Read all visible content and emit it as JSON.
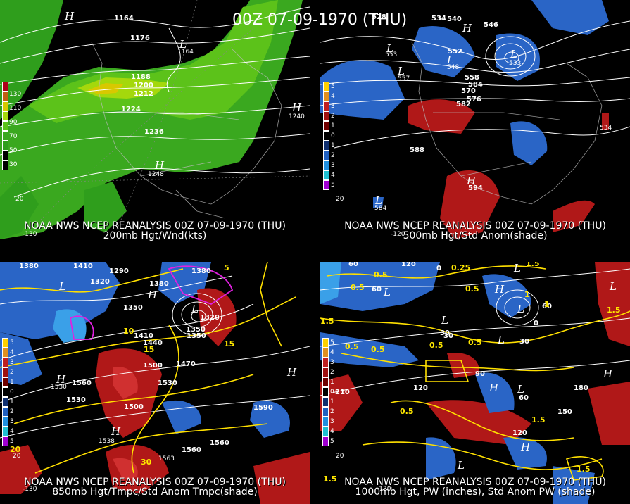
{
  "main_title": "00Z 07-09-1970 (THU)",
  "panels": [
    {
      "id": "tl",
      "caption_line1": "NOAA NWS NCEP REANALYSIS 00Z 07-09-1970 (THU)",
      "caption_line2": "200mb Hgt/Wnd(kts)",
      "legend": [
        "130",
        "110",
        "90",
        "70",
        "50",
        "30"
      ],
      "legend_colors": [
        "#b0001a",
        "#c06010",
        "#d8c800",
        "#90d000",
        "#40b020",
        "#108010"
      ],
      "contour_labels": [
        "1164",
        "1176",
        "1188",
        "1200",
        "1212",
        "1224",
        "1236",
        "1248",
        "1164"
      ],
      "pressure_marks": [
        "H",
        "H",
        "L"
      ],
      "pressure_values": [
        "1240",
        "1248"
      ],
      "lat_labels": [
        "20",
        "-130",
        "-120"
      ]
    },
    {
      "id": "tr",
      "caption_line1": "NOAA NWS NCEP REANALYSIS 00Z 07-09-1970 (THU)",
      "caption_line2": "500mb Hgt/Std Anom(shade)",
      "legend": [
        "5",
        "4",
        "3",
        "2",
        "1",
        "0",
        "1",
        "2",
        "3",
        "4",
        "5"
      ],
      "legend_colors": [
        "#ffd000",
        "#e09020",
        "#c02020",
        "#a01010",
        "#700000",
        "#000000",
        "#103070",
        "#2060c0",
        "#2090e0",
        "#20c0d0",
        "#a000d0"
      ],
      "contour_labels": [
        "528",
        "534",
        "540",
        "546",
        "552",
        "558",
        "570",
        "576",
        "582",
        "584",
        "588",
        "594",
        "534",
        "553",
        "557",
        "548",
        "533",
        "584"
      ],
      "pressure_marks": [
        "H",
        "L",
        "L",
        "L",
        "L",
        "H",
        "L"
      ],
      "lat_labels": [
        "20",
        "-130",
        "-120"
      ]
    },
    {
      "id": "bl",
      "caption_line1": "NOAA NWS NCEP REANALYSIS 00Z 07-09-1970 (THU)",
      "caption_line2": "850mb Hgt/Tmpc/Std Anom Tmpc(shade)",
      "legend": [
        "5",
        "4",
        "3",
        "2",
        "1",
        "0",
        "1",
        "2",
        "3",
        "4",
        "5"
      ],
      "legend_colors": [
        "#ffd000",
        "#e09020",
        "#c02020",
        "#a01010",
        "#700000",
        "#000000",
        "#103070",
        "#2060c0",
        "#2090e0",
        "#20c0d0",
        "#a000d0"
      ],
      "contour_labels": [
        "1380",
        "1410",
        "1290",
        "1320",
        "1380",
        "1350",
        "1350",
        "1410",
        "1440",
        "1470",
        "1500",
        "1530",
        "1560",
        "1530",
        "1500",
        "1590",
        "1560",
        "1560",
        "1350",
        "1320",
        "1380",
        "1530",
        "1538",
        "1563"
      ],
      "temp_labels": [
        "10",
        "15",
        "20",
        "15",
        "30",
        "5"
      ],
      "pressure_marks": [
        "L",
        "H",
        "L",
        "H",
        "H",
        "H"
      ],
      "lat_labels": [
        "20",
        "-130",
        "-120"
      ]
    },
    {
      "id": "br",
      "caption_line1": "NOAA NWS NCEP REANALYSIS 00Z 07-09-1970 (THU)",
      "caption_line2": "1000mb Hgt, PW (inches), Std Anom PW (shade)",
      "legend": [
        "5",
        "4",
        "3",
        "2",
        "1",
        "0",
        "1",
        "2",
        "3",
        "4",
        "5"
      ],
      "legend_colors": [
        "#ffd000",
        "#e09020",
        "#c02020",
        "#a01010",
        "#700000",
        "#000000",
        "#103070",
        "#2060c0",
        "#2090e0",
        "#20c0d0",
        "#a000d0"
      ],
      "contour_labels": [
        "60",
        "120",
        "0",
        "60",
        "30",
        "90",
        "120",
        "150",
        "180",
        "210",
        "120",
        "60",
        "30",
        "0",
        "60",
        "30"
      ],
      "pw_labels": [
        "0.5",
        "0.25",
        "0.5",
        "0.5",
        "1",
        "0.5",
        "1.5",
        "0.5",
        "0.5",
        "0.5",
        "1",
        "0.5",
        "1.5",
        "1.5",
        "1.5",
        "1.5",
        "1.5"
      ],
      "pressure_marks": [
        "L",
        "L",
        "H",
        "L",
        "L",
        "L",
        "L",
        "H",
        "L",
        "H",
        "H",
        "L"
      ],
      "lat_labels": [
        "20",
        "-130",
        "-120"
      ]
    }
  ]
}
